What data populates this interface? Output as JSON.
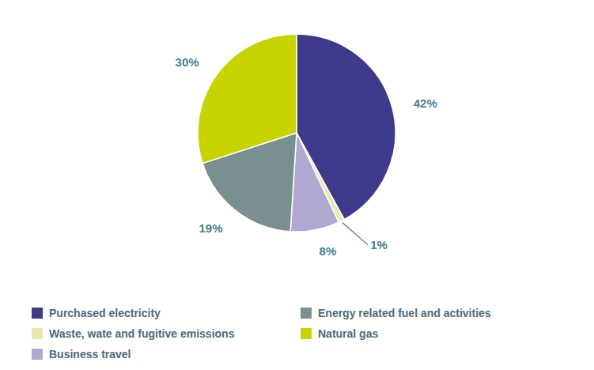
{
  "chart_data": {
    "type": "pie",
    "categories": [
      "Purchased electricity",
      "Waste, wate and fugitive emissions",
      "Business travel",
      "Energy related fuel and activities",
      "Natural gas"
    ],
    "values": [
      42,
      1,
      8,
      19,
      30
    ],
    "value_labels": [
      "42%",
      "1%",
      "8%",
      "19%",
      "30%"
    ],
    "colors": [
      "#3d3a8c",
      "#e8e8b0",
      "#b0a8d0",
      "#7a9090",
      "#c8d400"
    ],
    "data_labels": true,
    "legend": "lower left"
  }
}
